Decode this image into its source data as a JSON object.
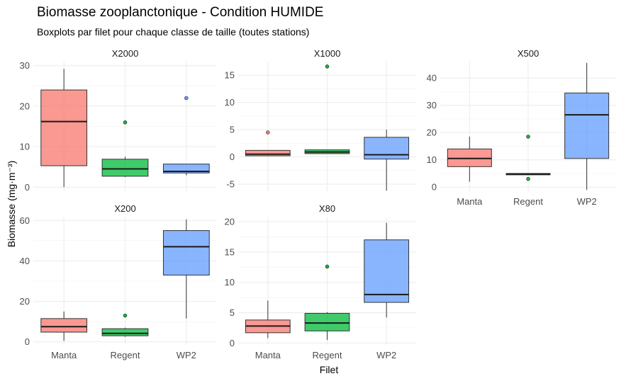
{
  "title": "Biomasse zooplanctonique - Condition HUMIDE",
  "subtitle": "Boxplots par filet pour chaque classe de taille (toutes stations)",
  "colors": {
    "Manta": "#f8766d",
    "Regent": "#00ba38",
    "WP2": "#619cff"
  },
  "chart_data": {
    "type": "boxplot",
    "xlabel": "Filet",
    "ylabel": "Biomasse (mg·m⁻³)",
    "categories": [
      "Manta",
      "Regent",
      "WP2"
    ],
    "grid": true,
    "panels": [
      {
        "name": "X2000",
        "ylim": [
          -1,
          31
        ],
        "yticks": [
          0,
          10,
          20,
          30
        ],
        "show_xticks": false,
        "boxes": [
          {
            "filet": "Manta",
            "min": 0,
            "q1": 5.3,
            "median": 16.2,
            "q3": 24.0,
            "max": 29.2,
            "outliers": []
          },
          {
            "filet": "Regent",
            "min": 2.5,
            "q1": 2.7,
            "median": 4.5,
            "q3": 6.9,
            "max": 7.5,
            "outliers": [
              16.0
            ]
          },
          {
            "filet": "WP2",
            "min": 2.9,
            "q1": 3.5,
            "median": 3.9,
            "q3": 5.7,
            "max": 5.7,
            "outliers": [
              22.0
            ]
          }
        ]
      },
      {
        "name": "X1000",
        "ylim": [
          -6.3,
          17.5
        ],
        "yticks": [
          -5,
          0,
          5,
          10,
          15
        ],
        "show_xticks": false,
        "boxes": [
          {
            "filet": "Manta",
            "min": 0.1,
            "q1": 0.2,
            "median": 0.5,
            "q3": 1.2,
            "max": 1.2,
            "outliers": [
              4.5
            ]
          },
          {
            "filet": "Regent",
            "min": 0.6,
            "q1": 0.6,
            "median": 0.9,
            "q3": 1.3,
            "max": 1.3,
            "outliers": [
              16.6
            ]
          },
          {
            "filet": "WP2",
            "min": -6.2,
            "q1": -0.4,
            "median": 0.4,
            "q3": 3.6,
            "max": 5.0,
            "outliers": []
          }
        ]
      },
      {
        "name": "X500",
        "ylim": [
          -1.5,
          46
        ],
        "yticks": [
          0,
          10,
          20,
          30,
          40
        ],
        "show_xticks": true,
        "boxes": [
          {
            "filet": "Manta",
            "min": 2.0,
            "q1": 7.5,
            "median": 10.5,
            "q3": 14.0,
            "max": 18.5,
            "outliers": []
          },
          {
            "filet": "Regent",
            "min": 4.5,
            "q1": 4.5,
            "median": 4.8,
            "q3": 5.0,
            "max": 5.0,
            "outliers": [
              18.5,
              3.0
            ]
          },
          {
            "filet": "WP2",
            "min": -1.0,
            "q1": 10.5,
            "median": 26.5,
            "q3": 34.5,
            "max": 45.5,
            "outliers": []
          }
        ]
      },
      {
        "name": "X200",
        "ylim": [
          -1.5,
          61.5
        ],
        "yticks": [
          0,
          20,
          40,
          60
        ],
        "show_xticks": true,
        "boxes": [
          {
            "filet": "Manta",
            "min": 0.5,
            "q1": 4.8,
            "median": 7.5,
            "q3": 11.5,
            "max": 15.0,
            "outliers": []
          },
          {
            "filet": "Regent",
            "min": 2.5,
            "q1": 3.0,
            "median": 4.2,
            "q3": 6.5,
            "max": 7.0,
            "outliers": [
              13.0
            ]
          },
          {
            "filet": "WP2",
            "min": 11.5,
            "q1": 33.0,
            "median": 47.0,
            "q3": 55.0,
            "max": 60.5,
            "outliers": []
          }
        ]
      },
      {
        "name": "X80",
        "ylim": [
          -0.3,
          20.7
        ],
        "yticks": [
          0,
          5,
          10,
          15,
          20
        ],
        "show_xticks": true,
        "boxes": [
          {
            "filet": "Manta",
            "min": 0.8,
            "q1": 1.7,
            "median": 2.8,
            "q3": 3.8,
            "max": 7.0,
            "outliers": []
          },
          {
            "filet": "Regent",
            "min": 0.5,
            "q1": 2.0,
            "median": 3.3,
            "q3": 4.9,
            "max": 5.1,
            "outliers": [
              12.6
            ]
          },
          {
            "filet": "WP2",
            "min": 4.2,
            "q1": 6.7,
            "median": 8.0,
            "q3": 17.0,
            "max": 19.8,
            "outliers": []
          }
        ]
      }
    ]
  }
}
